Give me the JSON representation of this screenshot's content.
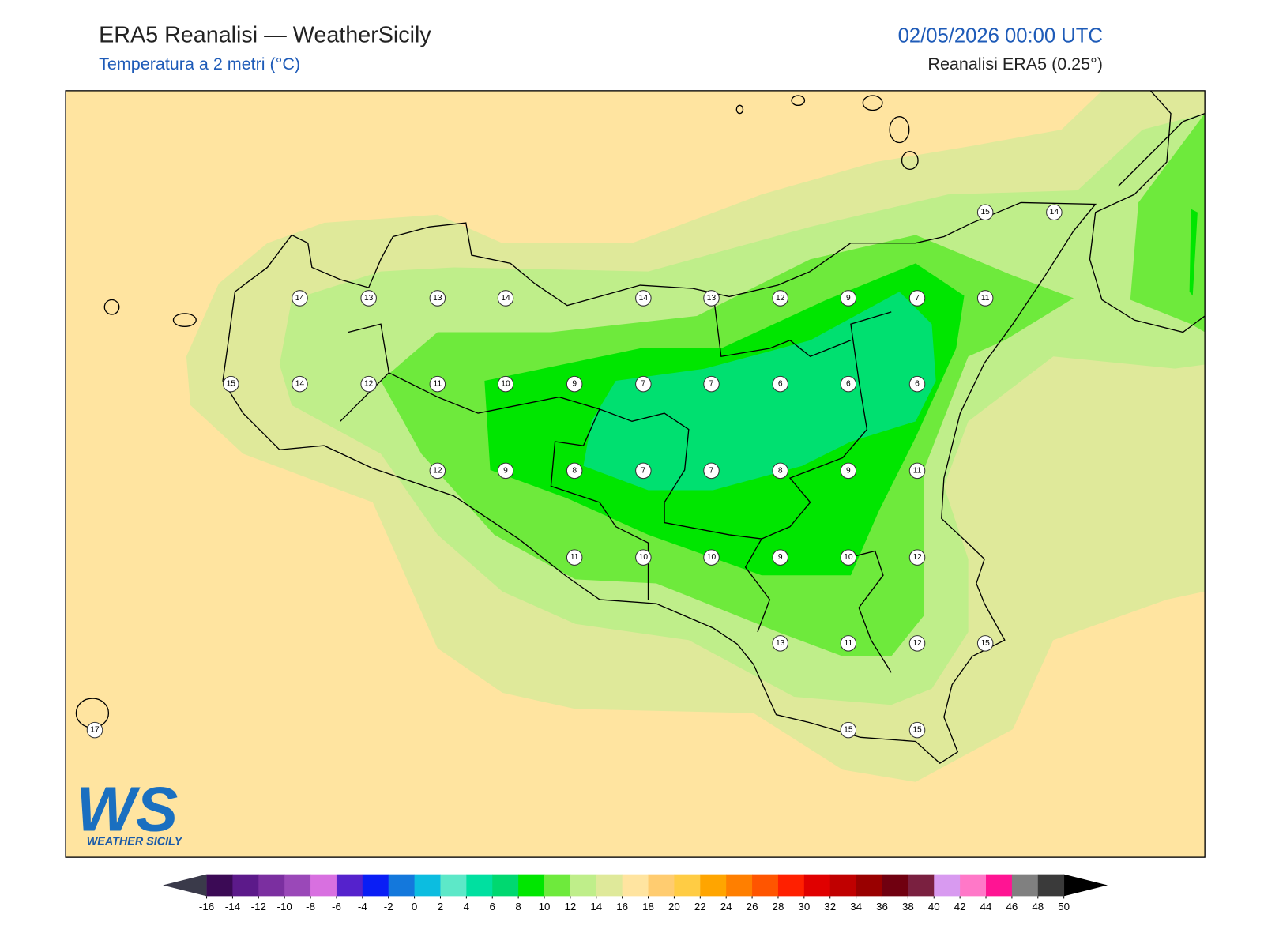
{
  "header": {
    "title": "ERA5 Reanalisi — WeatherSicily",
    "subtitle": "Temperatura a 2 metri (°C)",
    "datetime": "02/05/2026 00:00 UTC",
    "source": "Reanalisi ERA5 (0.25°)"
  },
  "stations": [
    15,
    14,
    14,
    13,
    13,
    14,
    14,
    13,
    12,
    9,
    7,
    11,
    15,
    14,
    12,
    11,
    10,
    9,
    7,
    7,
    6,
    6,
    6,
    12,
    9,
    8,
    7,
    7,
    8,
    9,
    11,
    11,
    10,
    10,
    9,
    10,
    12,
    13,
    11,
    12,
    15,
    17,
    15,
    15
  ],
  "colorbar": {
    "ticks": [
      -16,
      -14,
      -12,
      -10,
      -8,
      -6,
      -4,
      -2,
      0,
      2,
      4,
      6,
      8,
      10,
      12,
      14,
      16,
      18,
      20,
      22,
      24,
      26,
      28,
      30,
      32,
      34,
      36,
      38,
      40,
      42,
      44,
      46,
      48,
      50
    ],
    "colors": [
      "#3b0a55",
      "#5c1a8a",
      "#7b2fa0",
      "#9a48b8",
      "#d870e0",
      "#5522cc",
      "#0a1ef5",
      "#1478dc",
      "#0cbde0",
      "#5de8c8",
      "#00e0a0",
      "#00d870",
      "#00e600",
      "#6eea3c",
      "#bfee8a",
      "#dfe99a",
      "#ffe4a0",
      "#ffcc70",
      "#ffcc44",
      "#ffa500",
      "#ff7f00",
      "#ff5500",
      "#ff2000",
      "#e00000",
      "#c00000",
      "#990000",
      "#700010",
      "#7a2040",
      "#d89af0",
      "#ff78c8",
      "#ff1493",
      "#808080",
      "#3a3a3a"
    ],
    "extend_colors": [
      "#3a3a4a",
      "#000000"
    ]
  },
  "logo": {
    "mark": "WS",
    "name": "WEATHER SICILY"
  }
}
